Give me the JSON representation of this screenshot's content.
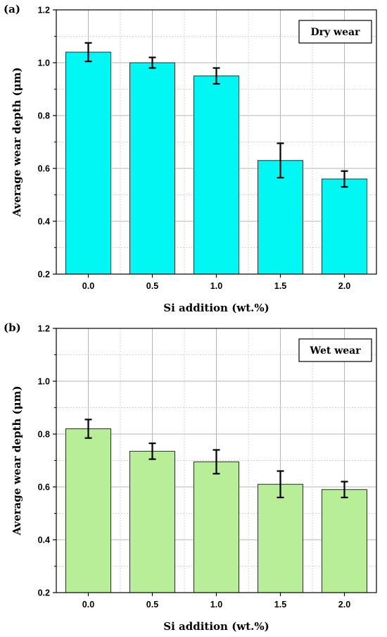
{
  "chart_data": [
    {
      "type": "bar",
      "panel_label": "(a)",
      "legend_label": "Dry wear",
      "categories": [
        "0.0",
        "0.5",
        "1.0",
        "1.5",
        "2.0"
      ],
      "values": [
        1.04,
        1.0,
        0.95,
        0.63,
        0.56
      ],
      "errors": [
        0.035,
        0.02,
        0.03,
        0.065,
        0.03
      ],
      "xlabel": "Si addition (wt.%)",
      "ylabel": "Average wear depth (μm)",
      "ylim": [
        0.2,
        1.2
      ],
      "yticks": [
        "0.2",
        "0.4",
        "0.6",
        "0.8",
        "1.0",
        "1.2"
      ],
      "bar_color": "#00f7f3",
      "grid": true,
      "legend_position": "top-right"
    },
    {
      "type": "bar",
      "panel_label": "(b)",
      "legend_label": "Wet wear",
      "categories": [
        "0.0",
        "0.5",
        "1.0",
        "1.5",
        "2.0"
      ],
      "values": [
        0.82,
        0.735,
        0.695,
        0.61,
        0.59
      ],
      "errors": [
        0.035,
        0.03,
        0.045,
        0.05,
        0.03
      ],
      "xlabel": "Si addition (wt.%)",
      "ylabel": "Average wear depth (μm)",
      "ylim": [
        0.2,
        1.2
      ],
      "yticks": [
        "0.2",
        "0.4",
        "0.6",
        "0.8",
        "1.0",
        "1.2"
      ],
      "bar_color": "#b8ee98",
      "grid": true,
      "legend_position": "top-right"
    }
  ]
}
